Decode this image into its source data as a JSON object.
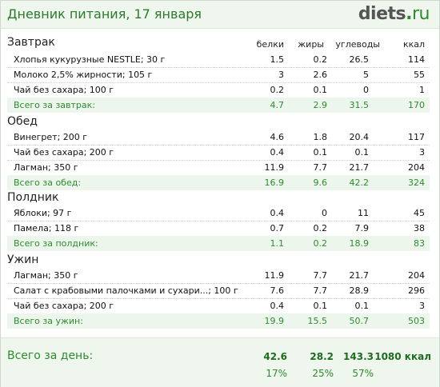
{
  "header": {
    "title": "Дневник питания, 17 января",
    "logo_main": "diets",
    "logo_dot": ".",
    "logo_tld": "ru"
  },
  "columns": {
    "protein": "белки",
    "fat": "жиры",
    "carbs": "углеводы",
    "kcal": "ккал"
  },
  "meals": [
    {
      "title": "Завтрак",
      "items": [
        {
          "name": "Хлопья кукурузные NESTLE; 30 г",
          "protein": "1.5",
          "fat": "0.2",
          "carbs": "26.5",
          "kcal": "114"
        },
        {
          "name": "Молоко 2,5% жирности; 105 г",
          "protein": "3",
          "fat": "2.6",
          "carbs": "5",
          "kcal": "55"
        },
        {
          "name": "Чай без сахара; 100 г",
          "protein": "0.2",
          "fat": "0.1",
          "carbs": "0",
          "kcal": "1"
        }
      ],
      "total": {
        "name": "Всего за завтрак:",
        "protein": "4.7",
        "fat": "2.9",
        "carbs": "31.5",
        "kcal": "170"
      }
    },
    {
      "title": "Обед",
      "items": [
        {
          "name": "Винегрет; 200 г",
          "protein": "4.6",
          "fat": "1.8",
          "carbs": "20.4",
          "kcal": "117"
        },
        {
          "name": "Чай без сахара; 200 г",
          "protein": "0.4",
          "fat": "0.1",
          "carbs": "0.1",
          "kcal": "3"
        },
        {
          "name": "Лагман; 350 г",
          "protein": "11.9",
          "fat": "7.7",
          "carbs": "21.7",
          "kcal": "204"
        }
      ],
      "total": {
        "name": "Всего за обед:",
        "protein": "16.9",
        "fat": "9.6",
        "carbs": "42.2",
        "kcal": "324"
      }
    },
    {
      "title": "Полдник",
      "items": [
        {
          "name": "Яблоки; 97 г",
          "protein": "0.4",
          "fat": "0",
          "carbs": "11",
          "kcal": "45"
        },
        {
          "name": "Памела; 118 г",
          "protein": "0.7",
          "fat": "0.2",
          "carbs": "7.9",
          "kcal": "38"
        }
      ],
      "total": {
        "name": "Всего за полдник:",
        "protein": "1.1",
        "fat": "0.2",
        "carbs": "18.9",
        "kcal": "83"
      }
    },
    {
      "title": "Ужин",
      "items": [
        {
          "name": "Лагман; 350 г",
          "protein": "11.9",
          "fat": "7.7",
          "carbs": "21.7",
          "kcal": "204"
        },
        {
          "name": "Салат с крабовыми палочками и сухари...; 100 г",
          "protein": "7.6",
          "fat": "7.7",
          "carbs": "28.9",
          "kcal": "296"
        },
        {
          "name": "Чай без сахара; 200 г",
          "protein": "0.4",
          "fat": "0.1",
          "carbs": "0.1",
          "kcal": "3"
        }
      ],
      "total": {
        "name": "Всего за ужин:",
        "protein": "19.9",
        "fat": "15.5",
        "carbs": "50.7",
        "kcal": "503"
      }
    }
  ],
  "day": {
    "label": "Всего за день:",
    "protein": "42.6",
    "fat": "28.2",
    "carbs": "143.3",
    "kcal": "1080 ккал",
    "protein_pct": "17%",
    "fat_pct": "25%",
    "carbs_pct": "57%"
  }
}
